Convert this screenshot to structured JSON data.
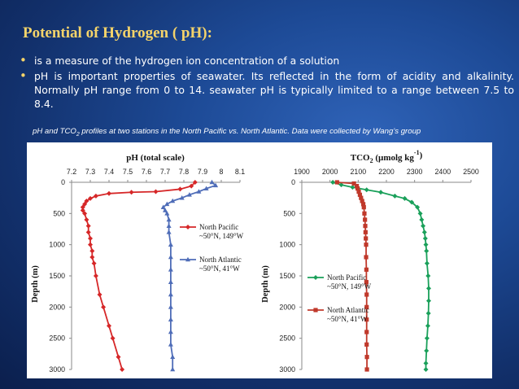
{
  "slide": {
    "title": "Potential of Hydrogen ( pH):",
    "bullets": [
      "is a measure of the hydrogen ion concentration of a solution",
      "pH is important properties of seawater. Its reflected in the form of acidity and alkalinity. Normally  pH range from 0 to 14. seawater pH is typically limited to a range  between 7.5 to 8.4."
    ],
    "caption_prefix": "pH and TCO",
    "caption_sub": "2",
    "caption_suffix": " profiles at two stations in the North Pacific vs. North Atlantic. Data were collected by Wang’s group"
  },
  "colors": {
    "title": "#f5d46a",
    "pacific_ph": "#d62728",
    "atlantic_ph": "#4f6db8",
    "pacific_tco2": "#1aa05a",
    "atlantic_tco2": "#c0392b"
  },
  "chart_data": [
    {
      "type": "line",
      "title": "pH (total scale)",
      "xlabel": "pH (total scale)",
      "ylabel": "Depth (m)",
      "xlim": [
        7.2,
        8.1
      ],
      "xticks": [
        "7.2",
        "7.3",
        "7.4",
        "7.5",
        "7.6",
        "7.7",
        "7.8",
        "7.9",
        "8",
        "8.1"
      ],
      "ylim": [
        0,
        3000
      ],
      "yticks": [
        "0",
        "500",
        "1000",
        "1500",
        "2000",
        "2500",
        "3000"
      ],
      "y_inverted": true,
      "x_axis_position": "top",
      "legend_position": "right-middle",
      "series": [
        {
          "name_line1": "North Pacific",
          "name_line2": "~50°N, 149°W",
          "color": "#d62728",
          "marker": "diamond",
          "points": [
            [
              7.86,
              0
            ],
            [
              7.84,
              60
            ],
            [
              7.78,
              110
            ],
            [
              7.65,
              150
            ],
            [
              7.52,
              160
            ],
            [
              7.4,
              180
            ],
            [
              7.33,
              220
            ],
            [
              7.3,
              260
            ],
            [
              7.28,
              300
            ],
            [
              7.27,
              350
            ],
            [
              7.26,
              400
            ],
            [
              7.26,
              450
            ],
            [
              7.27,
              500
            ],
            [
              7.28,
              600
            ],
            [
              7.29,
              700
            ],
            [
              7.29,
              800
            ],
            [
              7.3,
              900
            ],
            [
              7.3,
              1000
            ],
            [
              7.31,
              1100
            ],
            [
              7.31,
              1200
            ],
            [
              7.32,
              1300
            ],
            [
              7.33,
              1500
            ],
            [
              7.35,
              1800
            ],
            [
              7.37,
              2000
            ],
            [
              7.4,
              2300
            ],
            [
              7.42,
              2500
            ],
            [
              7.45,
              2800
            ],
            [
              7.47,
              3000
            ]
          ]
        },
        {
          "name_line1": "North Atlantic",
          "name_line2": "~50°N, 41°W",
          "color": "#4f6db8",
          "marker": "triangle",
          "points": [
            [
              7.95,
              0
            ],
            [
              7.97,
              50
            ],
            [
              7.92,
              100
            ],
            [
              7.88,
              150
            ],
            [
              7.83,
              200
            ],
            [
              7.79,
              250
            ],
            [
              7.74,
              300
            ],
            [
              7.71,
              350
            ],
            [
              7.69,
              400
            ],
            [
              7.7,
              450
            ],
            [
              7.71,
              500
            ],
            [
              7.72,
              600
            ],
            [
              7.72,
              700
            ],
            [
              7.72,
              800
            ],
            [
              7.73,
              1000
            ],
            [
              7.73,
              1200
            ],
            [
              7.73,
              1400
            ],
            [
              7.73,
              1600
            ],
            [
              7.73,
              1800
            ],
            [
              7.73,
              2000
            ],
            [
              7.73,
              2200
            ],
            [
              7.73,
              2400
            ],
            [
              7.73,
              2600
            ],
            [
              7.74,
              2800
            ],
            [
              7.74,
              3000
            ]
          ]
        }
      ]
    },
    {
      "type": "line",
      "title_main": "TCO",
      "title_sub": "2",
      "title_unit": " (µmolg kg",
      "title_sup": "-1",
      "title_end": ")",
      "xlabel": "TCO2 (µmolg kg-1)",
      "ylabel": "Depth (m)",
      "xlim": [
        1900,
        2500
      ],
      "xticks": [
        "1900",
        "2000",
        "2100",
        "2200",
        "2300",
        "2400",
        "2500"
      ],
      "ylim": [
        0,
        3000
      ],
      "yticks": [
        "0",
        "500",
        "1000",
        "1500",
        "2000",
        "2500",
        "3000"
      ],
      "y_inverted": true,
      "x_axis_position": "top",
      "legend_position": "bottom-left",
      "series": [
        {
          "name_line1": "North Pacific",
          "name_line2": "~50°N, 149°W",
          "color": "#1aa05a",
          "marker": "diamond",
          "points": [
            [
              2010,
              0
            ],
            [
              2040,
              40
            ],
            [
              2080,
              80
            ],
            [
              2130,
              120
            ],
            [
              2180,
              160
            ],
            [
              2230,
              220
            ],
            [
              2265,
              260
            ],
            [
              2290,
              320
            ],
            [
              2310,
              400
            ],
            [
              2320,
              500
            ],
            [
              2325,
              600
            ],
            [
              2330,
              700
            ],
            [
              2335,
              800
            ],
            [
              2338,
              900
            ],
            [
              2340,
              1000
            ],
            [
              2342,
              1100
            ],
            [
              2344,
              1300
            ],
            [
              2348,
              1500
            ],
            [
              2350,
              1700
            ],
            [
              2350,
              1900
            ],
            [
              2349,
              2100
            ],
            [
              2347,
              2300
            ],
            [
              2344,
              2500
            ],
            [
              2342,
              2700
            ],
            [
              2340,
              2900
            ],
            [
              2340,
              3000
            ]
          ]
        },
        {
          "name_line1": "North Atlantic",
          "name_line2": "~50°N, 41°W",
          "color": "#c0392b",
          "marker": "square",
          "points": [
            [
              2025,
              0
            ],
            [
              2085,
              20
            ],
            [
              2095,
              60
            ],
            [
              2098,
              100
            ],
            [
              2102,
              150
            ],
            [
              2106,
              200
            ],
            [
              2110,
              250
            ],
            [
              2114,
              300
            ],
            [
              2118,
              350
            ],
            [
              2120,
              400
            ],
            [
              2122,
              500
            ],
            [
              2124,
              600
            ],
            [
              2125,
              700
            ],
            [
              2126,
              800
            ],
            [
              2127,
              900
            ],
            [
              2128,
              1000
            ],
            [
              2128,
              1200
            ],
            [
              2129,
              1400
            ],
            [
              2129,
              1600
            ],
            [
              2130,
              1800
            ],
            [
              2130,
              2000
            ],
            [
              2130,
              2200
            ],
            [
              2130,
              2400
            ],
            [
              2130,
              2600
            ],
            [
              2131,
              2800
            ],
            [
              2131,
              3000
            ]
          ]
        }
      ]
    }
  ]
}
